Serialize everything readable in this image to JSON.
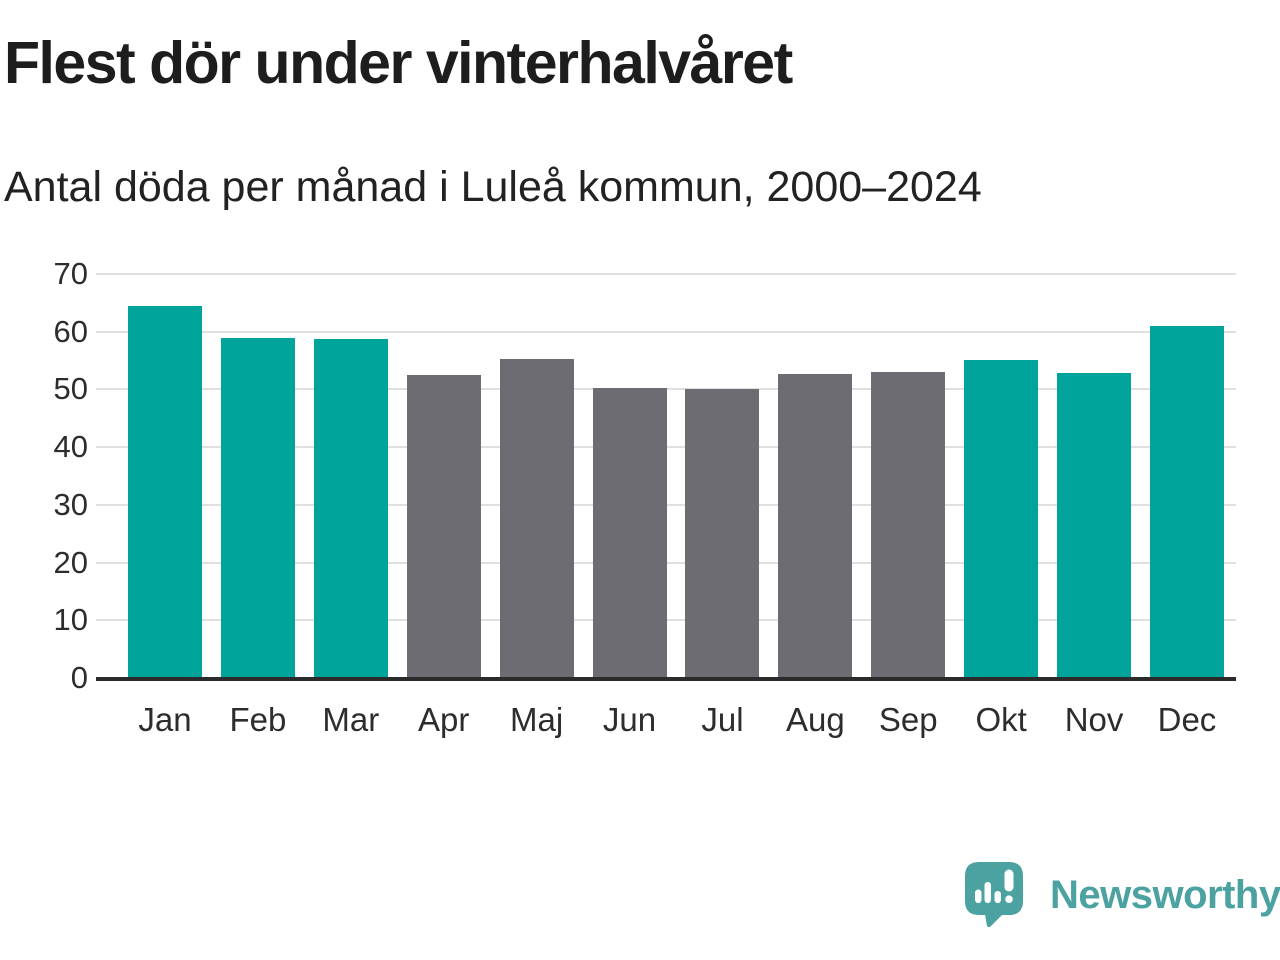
{
  "header": {
    "title": "Flest dör under vinterhalvåret",
    "subtitle": "Antal döda per månad i Luleå kommun, 2000–2024"
  },
  "chart_data": {
    "type": "bar",
    "title": "Flest dör under vinterhalvåret",
    "subtitle": "Antal döda per månad i Luleå kommun, 2000–2024",
    "categories": [
      "Jan",
      "Feb",
      "Mar",
      "Apr",
      "Maj",
      "Jun",
      "Jul",
      "Aug",
      "Sep",
      "Okt",
      "Nov",
      "Dec"
    ],
    "values": [
      64.5,
      59.0,
      58.7,
      52.5,
      55.3,
      50.3,
      50.0,
      52.6,
      53.0,
      55.1,
      52.8,
      61.0
    ],
    "bar_color_key": [
      "winter",
      "winter",
      "winter",
      "summer",
      "summer",
      "summer",
      "summer",
      "summer",
      "summer",
      "winter",
      "winter",
      "winter"
    ],
    "colors": {
      "winter": "#00a49b",
      "summer": "#6c6c72"
    },
    "xlabel": "",
    "ylabel": "",
    "ylim": [
      0,
      70
    ],
    "yticks": [
      0,
      10,
      20,
      30,
      40,
      50,
      60,
      70
    ],
    "grid": "horizontal",
    "legend": "none"
  },
  "branding": {
    "logo_text": "Newsworthy",
    "logo_color": "#4ba2a1",
    "logo_icon": "speech-bubble-bar-chart-exclamation-icon"
  }
}
